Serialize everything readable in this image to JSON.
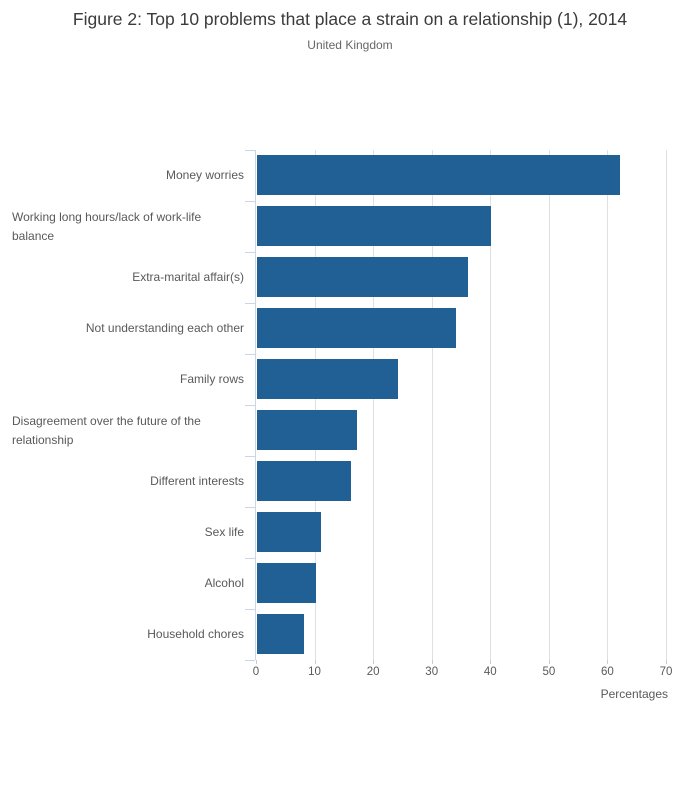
{
  "header": {
    "title": "Figure 2: Top 10 problems that place a strain on a relationship (1), 2014",
    "subtitle": "United Kingdom"
  },
  "chart_data": {
    "type": "bar",
    "orientation": "horizontal",
    "title": "Figure 2: Top 10 problems that place a strain on a relationship (1), 2014",
    "subtitle": "United Kingdom",
    "categories": [
      "Money worries",
      "Working long hours/lack of work-life balance",
      "Extra-marital affair(s)",
      "Not understanding each other",
      "Family rows",
      "Disagreement over the future of the relationship",
      "Different interests",
      "Sex life",
      "Alcohol",
      "Household chores"
    ],
    "values": [
      62,
      40,
      36,
      34,
      24,
      17,
      16,
      11,
      10,
      8
    ],
    "xlabel": "Percentages",
    "xlim": [
      0,
      70
    ],
    "xticks": [
      0,
      10,
      20,
      30,
      40,
      50,
      60,
      70
    ],
    "grid": true,
    "legend": "none",
    "colors": {
      "bar": "#206095",
      "gridline": "#e0e0e0",
      "axis": "#c9d7e4",
      "x_tick": "#cccccc",
      "label_text": "#595959",
      "title_text": "#3b3b3b",
      "subtitle_text": "#666666"
    }
  }
}
